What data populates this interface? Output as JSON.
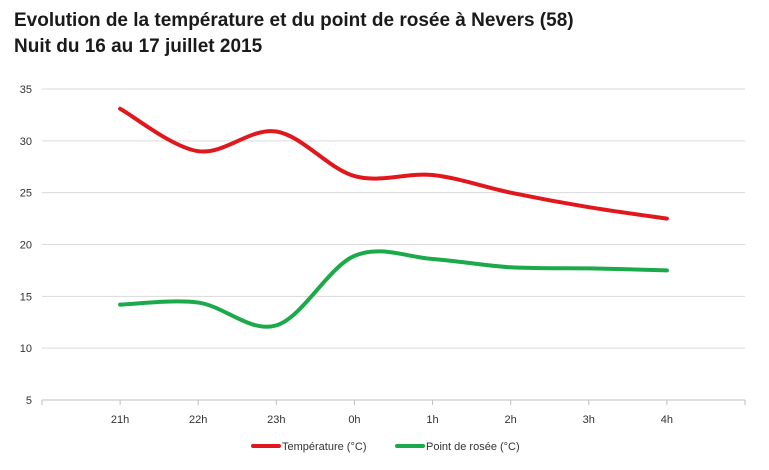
{
  "chart_data": {
    "type": "line",
    "title": "Evolution de la température et du point de rosée à Nevers (58)",
    "subtitle": "Nuit du 16 au 17 juillet 2015",
    "xlabel": "",
    "ylabel": "",
    "categories": [
      "21h",
      "22h",
      "23h",
      "0h",
      "1h",
      "2h",
      "3h",
      "4h"
    ],
    "ylim": [
      5,
      35
    ],
    "yticks": [
      "5",
      "10",
      "15",
      "20",
      "25",
      "30",
      "35"
    ],
    "grid": true,
    "legend_position": "bottom",
    "smooth": true,
    "series": [
      {
        "name": "Température (°C)",
        "color": "#e0171d",
        "values": [
          33.1,
          29.0,
          30.9,
          26.6,
          26.7,
          25.0,
          23.6,
          22.5
        ]
      },
      {
        "name": "Point de rosée (°C)",
        "color": "#1aaa4a",
        "values": [
          14.2,
          14.4,
          12.2,
          18.9,
          18.6,
          17.8,
          17.7,
          17.5
        ]
      }
    ]
  }
}
